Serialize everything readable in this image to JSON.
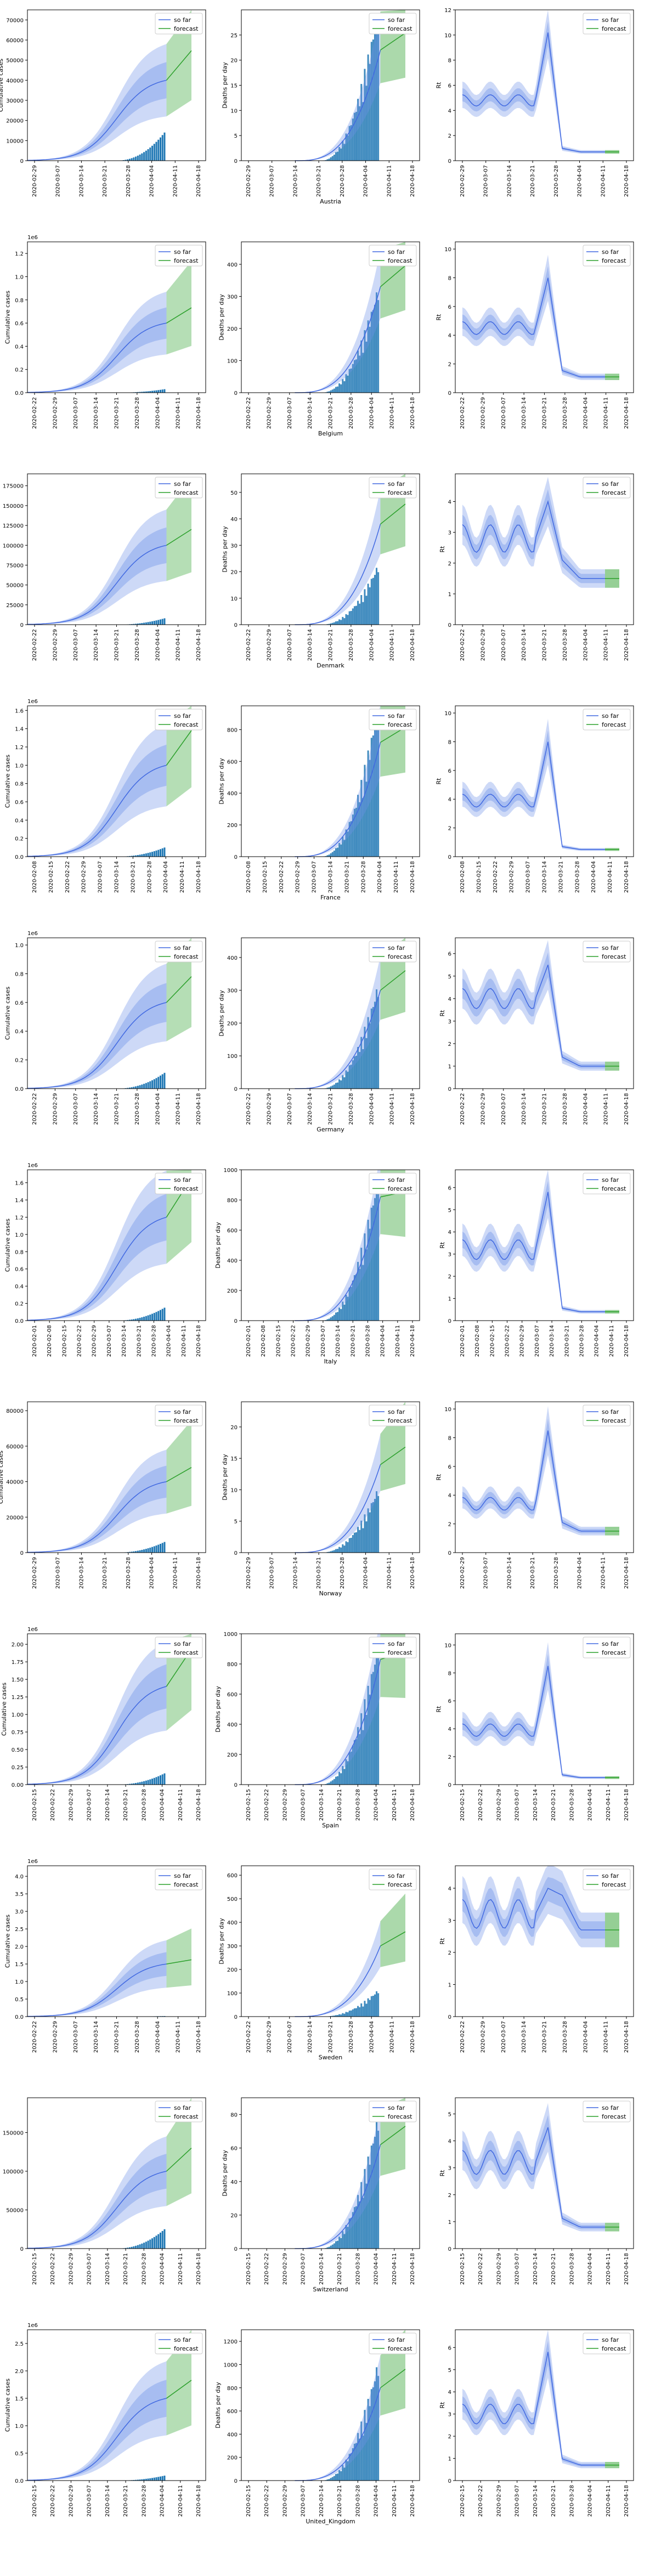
{
  "legend": {
    "so_far": "so far",
    "forecast": "forecast"
  },
  "colors": {
    "blue_line": "#4169e1",
    "blue_band": "#6f93e8",
    "green_band": "#2ca02c",
    "bar": "#1f77b4"
  },
  "chart_data": [
    {
      "country": "Austria",
      "dates": [
        "2020-02-29",
        "2020-03-07",
        "2020-03-14",
        "2020-03-21",
        "2020-03-28",
        "2020-04-04",
        "2020-04-11",
        "2020-04-18"
      ],
      "cases": {
        "ylabel": "Cumulative cases",
        "ylim": [
          0,
          75000
        ],
        "ticks": [
          "0",
          "10000",
          "20000",
          "30000",
          "40000",
          "50000",
          "60000",
          "70000"
        ],
        "exponent": "",
        "peak": 40000,
        "end_frac": 0.92,
        "bars_max": 14000
      },
      "deaths": {
        "ylabel": "Deaths per day",
        "ylim": [
          0,
          30
        ],
        "ticks": [
          "0",
          "5",
          "10",
          "15",
          "20",
          "25"
        ],
        "peak": 22,
        "end_frac": 0.9,
        "bars_max": 30
      },
      "rt": {
        "ylabel": "Rt",
        "ylim": [
          0,
          12
        ],
        "ticks": [
          "0",
          "2",
          "4",
          "6",
          "8",
          "10",
          "12"
        ],
        "base": 4.8,
        "spike": 10.2,
        "final": 0.7
      }
    },
    {
      "country": "Belgium",
      "dates": [
        "2020-02-22",
        "2020-02-29",
        "2020-03-07",
        "2020-03-14",
        "2020-03-21",
        "2020-03-28",
        "2020-04-04",
        "2020-04-11",
        "2020-04-18"
      ],
      "cases": {
        "ylabel": "Cumulative cases",
        "ylim": [
          0,
          1300000
        ],
        "ticks": [
          "0.0",
          "0.2",
          "0.4",
          "0.6",
          "0.8",
          "1.0",
          "1.2"
        ],
        "exponent": "1e6",
        "peak": 600000,
        "end_frac": 0.55,
        "bars_max": 30000
      },
      "deaths": {
        "ylabel": "Deaths per day",
        "ylim": [
          0,
          470
        ],
        "ticks": [
          "0",
          "100",
          "200",
          "300",
          "400"
        ],
        "peak": 330,
        "end_frac": 1.0,
        "bars_max": 320
      },
      "rt": {
        "ylabel": "Rt",
        "ylim": [
          0,
          10.5
        ],
        "ticks": [
          "0",
          "2",
          "4",
          "6",
          "8",
          "10"
        ],
        "base": 4.5,
        "spike": 8.0,
        "final": 1.1
      }
    },
    {
      "country": "Denmark",
      "dates": [
        "2020-02-22",
        "2020-02-29",
        "2020-03-07",
        "2020-03-14",
        "2020-03-21",
        "2020-03-28",
        "2020-04-04",
        "2020-04-11",
        "2020-04-18"
      ],
      "cases": {
        "ylabel": "Cumulative cases",
        "ylim": [
          0,
          190000
        ],
        "ticks": [
          "0",
          "25000",
          "50000",
          "75000",
          "100000",
          "125000",
          "150000",
          "175000"
        ],
        "exponent": "",
        "peak": 100000,
        "end_frac": 0.5,
        "bars_max": 8000
      },
      "deaths": {
        "ylabel": "Deaths per day",
        "ylim": [
          0,
          57
        ],
        "ticks": [
          "0",
          "10",
          "20",
          "30",
          "40",
          "50"
        ],
        "peak": 38,
        "end_frac": 1.0,
        "bars_max": 22
      },
      "rt": {
        "ylabel": "Rt",
        "ylim": [
          0,
          4.9
        ],
        "ticks": [
          "0",
          "1",
          "2",
          "3",
          "4"
        ],
        "base": 2.8,
        "spike": 4.0,
        "final": 1.5
      }
    },
    {
      "country": "France",
      "dates": [
        "2020-02-08",
        "2020-02-15",
        "2020-02-22",
        "2020-02-29",
        "2020-03-07",
        "2020-03-14",
        "2020-03-21",
        "2020-03-28",
        "2020-04-04",
        "2020-04-11",
        "2020-04-18"
      ],
      "cases": {
        "ylabel": "Cumulative cases",
        "ylim": [
          0,
          1650000
        ],
        "ticks": [
          "0.0",
          "0.2",
          "0.4",
          "0.6",
          "0.8",
          "1.0",
          "1.2",
          "1.4",
          "1.6"
        ],
        "exponent": "1e6",
        "peak": 1000000,
        "end_frac": 0.95,
        "bars_max": 100000
      },
      "deaths": {
        "ylabel": "Deaths per day",
        "ylim": [
          0,
          950
        ],
        "ticks": [
          "0",
          "200",
          "400",
          "600",
          "800"
        ],
        "peak": 720,
        "end_frac": 0.85,
        "bars_max": 950
      },
      "rt": {
        "ylabel": "Rt",
        "ylim": [
          0,
          10.5
        ],
        "ticks": [
          "0",
          "2",
          "4",
          "6",
          "8",
          "10"
        ],
        "base": 3.9,
        "spike": 8.0,
        "final": 0.5
      }
    },
    {
      "country": "Germany",
      "dates": [
        "2020-02-22",
        "2020-02-29",
        "2020-03-07",
        "2020-03-14",
        "2020-03-21",
        "2020-03-28",
        "2020-04-04",
        "2020-04-11",
        "2020-04-18"
      ],
      "cases": {
        "ylabel": "Cumulative cases",
        "ylim": [
          0,
          1050000
        ],
        "ticks": [
          "0.0",
          "0.2",
          "0.4",
          "0.6",
          "0.8",
          "1.0"
        ],
        "exponent": "1e6",
        "peak": 600000,
        "end_frac": 0.75,
        "bars_max": 110000
      },
      "deaths": {
        "ylabel": "Deaths per day",
        "ylim": [
          0,
          460
        ],
        "ticks": [
          "0",
          "100",
          "200",
          "300",
          "400"
        ],
        "peak": 300,
        "end_frac": 1.0,
        "bars_max": 310
      },
      "rt": {
        "ylabel": "Rt",
        "ylim": [
          0,
          6.7
        ],
        "ticks": [
          "0",
          "1",
          "2",
          "3",
          "4",
          "5",
          "6"
        ],
        "base": 4.0,
        "spike": 5.5,
        "final": 1.0
      }
    },
    {
      "country": "Italy",
      "dates": [
        "2020-02-01",
        "2020-02-08",
        "2020-02-15",
        "2020-02-22",
        "2020-02-29",
        "2020-03-07",
        "2020-03-14",
        "2020-03-21",
        "2020-03-28",
        "2020-04-04",
        "2020-04-11",
        "2020-04-18"
      ],
      "cases": {
        "ylabel": "Cumulative cases",
        "ylim": [
          0,
          1750000
        ],
        "ticks": [
          "0.0",
          "0.2",
          "0.4",
          "0.6",
          "0.8",
          "1.0",
          "1.2",
          "1.4",
          "1.6"
        ],
        "exponent": "1e6",
        "peak": 1200000,
        "end_frac": 0.95,
        "bars_max": 150000
      },
      "deaths": {
        "ylabel": "Deaths per day",
        "ylim": [
          0,
          1000
        ],
        "ticks": [
          "0",
          "200",
          "400",
          "600",
          "800",
          "1000"
        ],
        "peak": 820,
        "end_frac": 0.65,
        "bars_max": 950
      },
      "rt": {
        "ylabel": "Rt",
        "ylim": [
          0,
          6.8
        ],
        "ticks": [
          "0",
          "1",
          "2",
          "3",
          "4",
          "5",
          "6"
        ],
        "base": 3.2,
        "spike": 5.8,
        "final": 0.4
      }
    },
    {
      "country": "Norway",
      "dates": [
        "2020-02-29",
        "2020-03-07",
        "2020-03-14",
        "2020-03-21",
        "2020-03-28",
        "2020-04-04",
        "2020-04-11",
        "2020-04-18"
      ],
      "cases": {
        "ylabel": "Cumulative cases",
        "ylim": [
          0,
          85000
        ],
        "ticks": [
          "0",
          "20000",
          "40000",
          "60000",
          "80000"
        ],
        "exponent": "",
        "peak": 40000,
        "end_frac": 0.5,
        "bars_max": 6000
      },
      "deaths": {
        "ylabel": "Deaths per day",
        "ylim": [
          0,
          24
        ],
        "ticks": [
          "0",
          "5",
          "10",
          "15",
          "20"
        ],
        "peak": 14,
        "end_frac": 1.0,
        "bars_max": 10
      },
      "rt": {
        "ylabel": "Rt",
        "ylim": [
          0,
          10.5
        ],
        "ticks": [
          "0",
          "2",
          "4",
          "6",
          "8",
          "10"
        ],
        "base": 3.4,
        "spike": 8.5,
        "final": 1.5
      }
    },
    {
      "country": "Spain",
      "dates": [
        "2020-02-15",
        "2020-02-22",
        "2020-02-29",
        "2020-03-07",
        "2020-03-14",
        "2020-03-21",
        "2020-03-28",
        "2020-04-04",
        "2020-04-11",
        "2020-04-18"
      ],
      "cases": {
        "ylabel": "Cumulative cases",
        "ylim": [
          0,
          2150000
        ],
        "ticks": [
          "0.00",
          "0.25",
          "0.50",
          "0.75",
          "1.00",
          "1.25",
          "1.50",
          "1.75",
          "2.00"
        ],
        "exponent": "1e6",
        "peak": 1400000,
        "end_frac": 0.95,
        "bars_max": 160000
      },
      "deaths": {
        "ylabel": "Deaths per day",
        "ylim": [
          0,
          1000
        ],
        "ticks": [
          "0",
          "200",
          "400",
          "600",
          "800",
          "1000"
        ],
        "peak": 830,
        "end_frac": 0.7,
        "bars_max": 930
      },
      "rt": {
        "ylabel": "Rt",
        "ylim": [
          0,
          10.8
        ],
        "ticks": [
          "0",
          "2",
          "4",
          "6",
          "8",
          "10"
        ],
        "base": 3.9,
        "spike": 8.5,
        "final": 0.5
      }
    },
    {
      "country": "Sweden",
      "dates": [
        "2020-02-22",
        "2020-02-29",
        "2020-03-07",
        "2020-03-14",
        "2020-03-21",
        "2020-03-28",
        "2020-04-04",
        "2020-04-11",
        "2020-04-18"
      ],
      "cases": {
        "ylabel": "Cumulative cases",
        "ylim": [
          0,
          4300000
        ],
        "ticks": [
          "0.0",
          "0.5",
          "1.0",
          "1.5",
          "2.0",
          "2.5",
          "3.0",
          "3.5",
          "4.0"
        ],
        "exponent": "1e6",
        "peak": 1500000,
        "end_frac": 0.2,
        "bars_max": 15000
      },
      "deaths": {
        "ylabel": "Deaths per day",
        "ylim": [
          0,
          640
        ],
        "ticks": [
          "0",
          "100",
          "200",
          "300",
          "400",
          "500",
          "600"
        ],
        "peak": 300,
        "end_frac": 1.0,
        "bars_max": 110
      },
      "rt": {
        "ylabel": "Rt",
        "ylim": [
          0,
          4.7
        ],
        "ticks": [
          "0",
          "1",
          "2",
          "3",
          "4"
        ],
        "base": 3.2,
        "spike": 4.0,
        "final": 2.7
      }
    },
    {
      "country": "Switzerland",
      "dates": [
        "2020-02-15",
        "2020-02-22",
        "2020-02-29",
        "2020-03-07",
        "2020-03-14",
        "2020-03-21",
        "2020-03-28",
        "2020-04-04",
        "2020-04-11",
        "2020-04-18"
      ],
      "cases": {
        "ylabel": "Cumulative cases",
        "ylim": [
          0,
          195000
        ],
        "ticks": [
          "0",
          "50000",
          "100000",
          "150000"
        ],
        "exponent": "",
        "peak": 100000,
        "end_frac": 0.75,
        "bars_max": 25000
      },
      "deaths": {
        "ylabel": "Deaths per day",
        "ylim": [
          0,
          90
        ],
        "ticks": [
          "0",
          "20",
          "40",
          "60",
          "80"
        ],
        "peak": 62,
        "end_frac": 0.95,
        "bars_max": 78
      },
      "rt": {
        "ylabel": "Rt",
        "ylim": [
          0,
          5.6
        ],
        "ticks": [
          "0",
          "1",
          "2",
          "3",
          "4",
          "5"
        ],
        "base": 3.2,
        "spike": 4.5,
        "final": 0.8
      }
    },
    {
      "country": "United_Kingdom",
      "dates": [
        "2020-02-15",
        "2020-02-22",
        "2020-02-29",
        "2020-03-07",
        "2020-03-14",
        "2020-03-21",
        "2020-03-28",
        "2020-04-04",
        "2020-04-11",
        "2020-04-18"
      ],
      "cases": {
        "ylabel": "Cumulative cases",
        "ylim": [
          0,
          2750000
        ],
        "ticks": [
          "0.0",
          "0.5",
          "1.0",
          "1.5",
          "2.0",
          "2.5"
        ],
        "exponent": "1e6",
        "peak": 1500000,
        "end_frac": 0.55,
        "bars_max": 90000
      },
      "deaths": {
        "ylabel": "Deaths per day",
        "ylim": [
          0,
          1300
        ],
        "ticks": [
          "0",
          "200",
          "400",
          "600",
          "800",
          "1000",
          "1200"
        ],
        "peak": 800,
        "end_frac": 1.0,
        "bars_max": 1000
      },
      "rt": {
        "ylabel": "Rt",
        "ylim": [
          0,
          6.8
        ],
        "ticks": [
          "0",
          "1",
          "2",
          "3",
          "4",
          "5",
          "6"
        ],
        "base": 3.0,
        "spike": 5.8,
        "final": 0.7
      }
    }
  ]
}
